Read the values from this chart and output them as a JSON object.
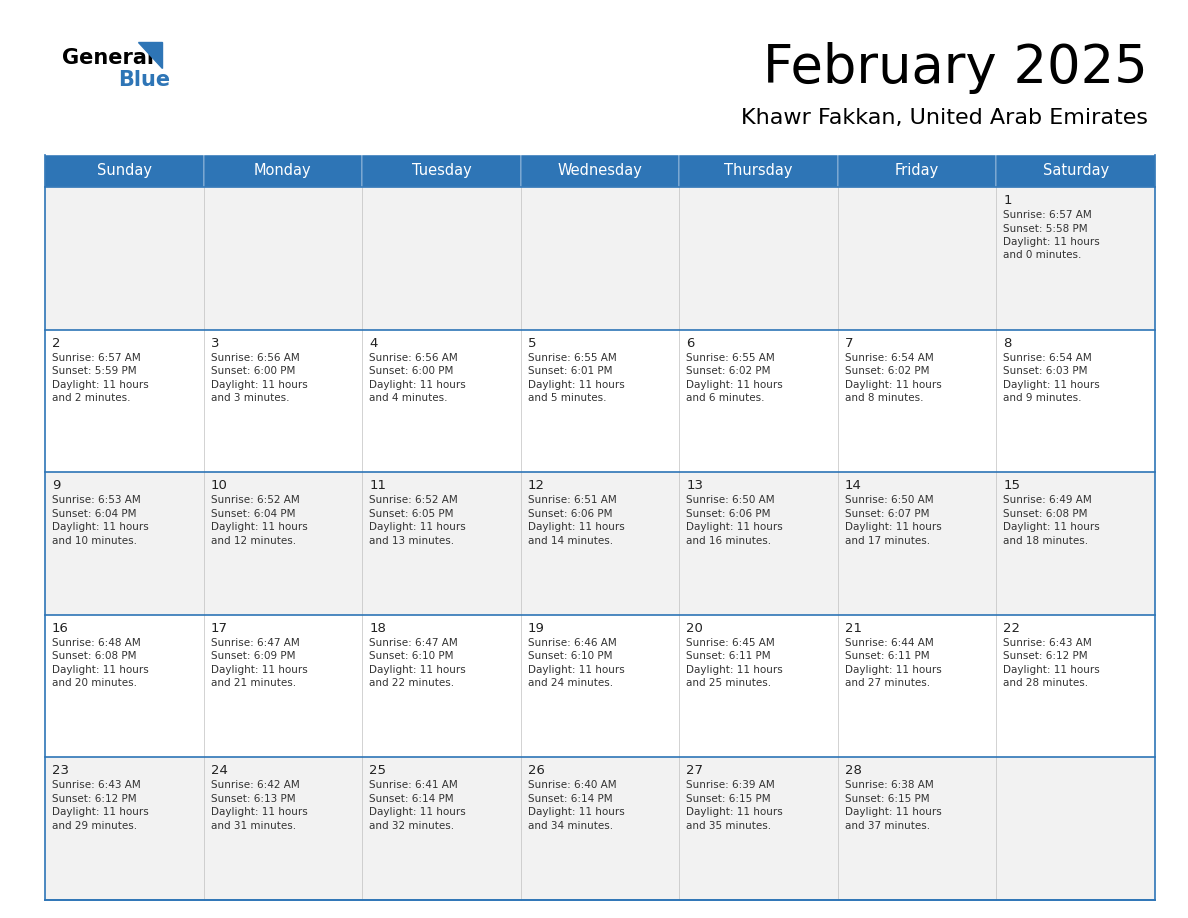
{
  "title": "February 2025",
  "subtitle": "Khawr Fakkan, United Arab Emirates",
  "header_color": "#2E75B6",
  "header_text_color": "#FFFFFF",
  "border_color": "#2E75B6",
  "day_headers": [
    "Sunday",
    "Monday",
    "Tuesday",
    "Wednesday",
    "Thursday",
    "Friday",
    "Saturday"
  ],
  "calendar": [
    [
      null,
      null,
      null,
      null,
      null,
      null,
      {
        "day": "1",
        "sunrise": "6:57 AM",
        "sunset": "5:58 PM",
        "daylight": "11 hours",
        "daylight2": "and 0 minutes."
      }
    ],
    [
      {
        "day": "2",
        "sunrise": "6:57 AM",
        "sunset": "5:59 PM",
        "daylight": "11 hours",
        "daylight2": "and 2 minutes."
      },
      {
        "day": "3",
        "sunrise": "6:56 AM",
        "sunset": "6:00 PM",
        "daylight": "11 hours",
        "daylight2": "and 3 minutes."
      },
      {
        "day": "4",
        "sunrise": "6:56 AM",
        "sunset": "6:00 PM",
        "daylight": "11 hours",
        "daylight2": "and 4 minutes."
      },
      {
        "day": "5",
        "sunrise": "6:55 AM",
        "sunset": "6:01 PM",
        "daylight": "11 hours",
        "daylight2": "and 5 minutes."
      },
      {
        "day": "6",
        "sunrise": "6:55 AM",
        "sunset": "6:02 PM",
        "daylight": "11 hours",
        "daylight2": "and 6 minutes."
      },
      {
        "day": "7",
        "sunrise": "6:54 AM",
        "sunset": "6:02 PM",
        "daylight": "11 hours",
        "daylight2": "and 8 minutes."
      },
      {
        "day": "8",
        "sunrise": "6:54 AM",
        "sunset": "6:03 PM",
        "daylight": "11 hours",
        "daylight2": "and 9 minutes."
      }
    ],
    [
      {
        "day": "9",
        "sunrise": "6:53 AM",
        "sunset": "6:04 PM",
        "daylight": "11 hours",
        "daylight2": "and 10 minutes."
      },
      {
        "day": "10",
        "sunrise": "6:52 AM",
        "sunset": "6:04 PM",
        "daylight": "11 hours",
        "daylight2": "and 12 minutes."
      },
      {
        "day": "11",
        "sunrise": "6:52 AM",
        "sunset": "6:05 PM",
        "daylight": "11 hours",
        "daylight2": "and 13 minutes."
      },
      {
        "day": "12",
        "sunrise": "6:51 AM",
        "sunset": "6:06 PM",
        "daylight": "11 hours",
        "daylight2": "and 14 minutes."
      },
      {
        "day": "13",
        "sunrise": "6:50 AM",
        "sunset": "6:06 PM",
        "daylight": "11 hours",
        "daylight2": "and 16 minutes."
      },
      {
        "day": "14",
        "sunrise": "6:50 AM",
        "sunset": "6:07 PM",
        "daylight": "11 hours",
        "daylight2": "and 17 minutes."
      },
      {
        "day": "15",
        "sunrise": "6:49 AM",
        "sunset": "6:08 PM",
        "daylight": "11 hours",
        "daylight2": "and 18 minutes."
      }
    ],
    [
      {
        "day": "16",
        "sunrise": "6:48 AM",
        "sunset": "6:08 PM",
        "daylight": "11 hours",
        "daylight2": "and 20 minutes."
      },
      {
        "day": "17",
        "sunrise": "6:47 AM",
        "sunset": "6:09 PM",
        "daylight": "11 hours",
        "daylight2": "and 21 minutes."
      },
      {
        "day": "18",
        "sunrise": "6:47 AM",
        "sunset": "6:10 PM",
        "daylight": "11 hours",
        "daylight2": "and 22 minutes."
      },
      {
        "day": "19",
        "sunrise": "6:46 AM",
        "sunset": "6:10 PM",
        "daylight": "11 hours",
        "daylight2": "and 24 minutes."
      },
      {
        "day": "20",
        "sunrise": "6:45 AM",
        "sunset": "6:11 PM",
        "daylight": "11 hours",
        "daylight2": "and 25 minutes."
      },
      {
        "day": "21",
        "sunrise": "6:44 AM",
        "sunset": "6:11 PM",
        "daylight": "11 hours",
        "daylight2": "and 27 minutes."
      },
      {
        "day": "22",
        "sunrise": "6:43 AM",
        "sunset": "6:12 PM",
        "daylight": "11 hours",
        "daylight2": "and 28 minutes."
      }
    ],
    [
      {
        "day": "23",
        "sunrise": "6:43 AM",
        "sunset": "6:12 PM",
        "daylight": "11 hours",
        "daylight2": "and 29 minutes."
      },
      {
        "day": "24",
        "sunrise": "6:42 AM",
        "sunset": "6:13 PM",
        "daylight": "11 hours",
        "daylight2": "and 31 minutes."
      },
      {
        "day": "25",
        "sunrise": "6:41 AM",
        "sunset": "6:14 PM",
        "daylight": "11 hours",
        "daylight2": "and 32 minutes."
      },
      {
        "day": "26",
        "sunrise": "6:40 AM",
        "sunset": "6:14 PM",
        "daylight": "11 hours",
        "daylight2": "and 34 minutes."
      },
      {
        "day": "27",
        "sunrise": "6:39 AM",
        "sunset": "6:15 PM",
        "daylight": "11 hours",
        "daylight2": "and 35 minutes."
      },
      {
        "day": "28",
        "sunrise": "6:38 AM",
        "sunset": "6:15 PM",
        "daylight": "11 hours",
        "daylight2": "and 37 minutes."
      },
      null
    ]
  ]
}
